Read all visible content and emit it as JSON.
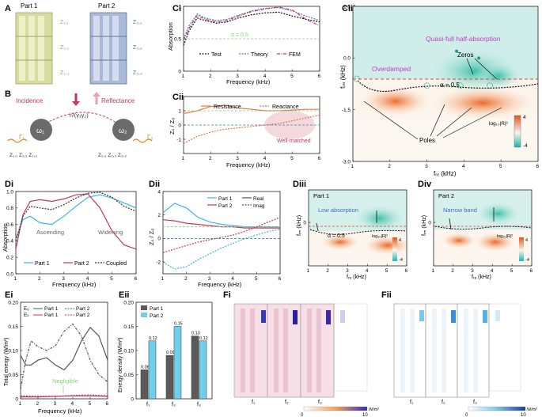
{
  "panel_labels": [
    "A",
    "B",
    "Ci",
    "Cii",
    "Ciii",
    "Di",
    "Dii",
    "Diii",
    "Div",
    "Ei",
    "Eii",
    "Fi",
    "Fii"
  ],
  "panelA": {
    "part1": "Part 1",
    "part2": "Part 2",
    "z1_labels": [
      "Z₁,₁",
      "Z₁,₂",
      "Z₁,₃"
    ],
    "z2_labels": [
      "Z₂,₁",
      "Z₂,₂",
      "Z₂,₃"
    ]
  },
  "panelB": {
    "incidence": "Incidence",
    "reflectance": "Reflectance",
    "coupling": "i√(γ₁γ₂)",
    "omega1": "ω₁",
    "omega2": "ω₂",
    "gamma1": "Γ₁",
    "gamma2": "Γ₂",
    "z_row1": "Z₁,₁  Z₁,₂  Z₁,₃",
    "z_row2": "Z₂,₁  Z₂,₂  Z₂,₃"
  },
  "colors": {
    "test": "#111111",
    "theory": "#3a7ec6",
    "fem": "#c8365a",
    "resistance": "#e07a4a",
    "reactance": "#e07a4a",
    "part1": "#39b6e6",
    "part2": "#c8365a",
    "coupled": "#333333",
    "magenta": "#c23cc4",
    "green_dash": "#8dd37a",
    "map_top": "#cfeee9",
    "map_zero": "#c6eae6",
    "map_warm": "#f6c89a",
    "map_hot": "#ec7a3a"
  },
  "chart_data": [
    {
      "id": "Ci",
      "type": "line",
      "xlabel": "Frequency (kHz)",
      "ylabel": "Absorption",
      "xlim": [
        1,
        6
      ],
      "ylim": [
        0,
        1
      ],
      "xticks": [
        1,
        2,
        3,
        4,
        5,
        6
      ],
      "yticks": [
        0,
        0.5,
        1
      ],
      "annotation": "α = 0.5",
      "series": [
        {
          "name": "Test",
          "x": [
            1,
            1.2,
            1.5,
            1.8,
            2.2,
            2.6,
            3,
            3.5,
            4,
            4.5,
            5,
            5.5,
            6
          ],
          "y": [
            0.4,
            0.62,
            0.82,
            0.78,
            0.74,
            0.76,
            0.82,
            0.87,
            0.9,
            0.91,
            0.85,
            0.8,
            0.76
          ]
        },
        {
          "name": "Theory",
          "x": [
            1,
            1.2,
            1.5,
            1.8,
            2.2,
            2.6,
            3,
            3.5,
            4,
            4.5,
            5,
            5.5,
            6
          ],
          "y": [
            0.5,
            0.7,
            0.88,
            0.82,
            0.78,
            0.8,
            0.86,
            0.93,
            0.97,
            0.98,
            0.93,
            0.85,
            0.78
          ]
        },
        {
          "name": "FEM",
          "x": [
            1,
            1.2,
            1.5,
            1.8,
            2.2,
            2.6,
            3,
            3.5,
            4,
            4.5,
            5,
            5.5,
            6
          ],
          "y": [
            0.48,
            0.66,
            0.86,
            0.8,
            0.76,
            0.78,
            0.85,
            0.92,
            0.96,
            0.99,
            0.94,
            0.8,
            0.7
          ]
        }
      ]
    },
    {
      "id": "Cii",
      "type": "line",
      "xlabel": "Frequency (kHz)",
      "ylabel": "Zₛ / Z₀",
      "xlim": [
        1,
        6
      ],
      "ylim": [
        -2,
        2
      ],
      "xticks": [
        1,
        2,
        3,
        4,
        5,
        6
      ],
      "yticks": [
        -1,
        0,
        1
      ],
      "annotation": "Well-matched",
      "series": [
        {
          "name": "Resistance",
          "x": [
            1,
            1.5,
            2,
            2.5,
            3,
            3.5,
            4,
            4.5,
            5,
            5.5,
            6
          ],
          "y": [
            0.8,
            1.0,
            1.3,
            1.4,
            1.2,
            1.1,
            1.0,
            1.0,
            1.05,
            1.1,
            1.1
          ]
        },
        {
          "name": "Reactance",
          "x": [
            1,
            1.5,
            2,
            2.5,
            3,
            3.5,
            4,
            4.5,
            5,
            5.5,
            6
          ],
          "y": [
            -1.3,
            -0.8,
            -0.5,
            -0.3,
            -0.2,
            -0.1,
            0.0,
            0.1,
            0.3,
            0.5,
            0.7
          ]
        }
      ]
    },
    {
      "id": "Ciii",
      "type": "heatmap",
      "xlabel": "fᵣₑ (kHz)",
      "ylabel": "fᵢₘ (kHz)",
      "xlim": [
        1,
        6
      ],
      "ylim": [
        -3,
        1.5
      ],
      "xticks": [
        1,
        2,
        3,
        4,
        5,
        6
      ],
      "yticks": [
        -3.0,
        -1.5,
        0.0,
        1.5
      ],
      "colorbar_label": "log₁₀|R|²",
      "colorbar_range": [
        -4,
        4
      ],
      "labels": {
        "quasi": "Quasi-full half-absorption",
        "overdamped": "Overdamped",
        "zeros": "Zeros",
        "poles": "Poles",
        "alpha": "α = 0.5"
      },
      "zeros": [
        [
          3.8,
          0.2
        ],
        [
          4.4,
          0.0
        ]
      ],
      "poles": [
        [
          1.1,
          -0.6
        ],
        [
          3.0,
          -0.8
        ],
        [
          3.9,
          -0.8
        ],
        [
          4.7,
          -0.8
        ]
      ]
    },
    {
      "id": "Di",
      "type": "line",
      "xlabel": "Frequency (kHz)",
      "ylabel": "Absorption",
      "xlim": [
        1,
        6
      ],
      "ylim": [
        0,
        1
      ],
      "xticks": [
        1,
        2,
        3,
        4,
        5,
        6
      ],
      "yticks": [
        0,
        0.2,
        0.4,
        0.6,
        0.8,
        1.0
      ],
      "annotations": [
        "Ascending",
        "Widening"
      ],
      "series": [
        {
          "name": "Part 1",
          "x": [
            1,
            1.3,
            1.6,
            2,
            2.5,
            3,
            3.5,
            4,
            4.5,
            5,
            5.5,
            6
          ],
          "y": [
            0.42,
            0.66,
            0.7,
            0.62,
            0.6,
            0.7,
            0.82,
            0.93,
            0.96,
            0.92,
            0.86,
            0.8
          ]
        },
        {
          "name": "Part 2",
          "x": [
            1,
            1.3,
            1.6,
            2,
            2.5,
            3,
            3.5,
            4,
            4.5,
            5,
            5.5,
            6
          ],
          "y": [
            0.3,
            0.72,
            0.88,
            0.9,
            0.88,
            0.91,
            0.96,
            0.97,
            0.8,
            0.52,
            0.35,
            0.3
          ]
        },
        {
          "name": "Coupled",
          "x": [
            1,
            1.3,
            1.6,
            2,
            2.5,
            3,
            3.5,
            4,
            4.5,
            5,
            5.5,
            6
          ],
          "y": [
            0.4,
            0.7,
            0.82,
            0.8,
            0.78,
            0.84,
            0.92,
            0.98,
            0.99,
            0.93,
            0.82,
            0.76
          ]
        }
      ]
    },
    {
      "id": "Dii",
      "type": "line",
      "xlabel": "Frequency (kHz)",
      "ylabel": "Zₛ / Z₀",
      "xlim": [
        1,
        6
      ],
      "ylim": [
        -3,
        4
      ],
      "xticks": [
        1,
        2,
        3,
        4,
        5,
        6
      ],
      "yticks": [
        -2,
        0,
        2,
        4
      ],
      "legend": [
        "Part 1",
        "Part 2",
        "Real",
        "Imag"
      ],
      "series": [
        {
          "name": "Part 1 Real",
          "x": [
            1,
            1.5,
            2,
            2.5,
            3,
            3.5,
            4,
            4.5,
            5,
            5.5,
            6
          ],
          "y": [
            2.2,
            3.0,
            2.6,
            1.8,
            1.4,
            1.2,
            1.1,
            1.0,
            1.0,
            1.0,
            1.0
          ]
        },
        {
          "name": "Part 2 Real",
          "x": [
            1,
            1.5,
            2,
            2.5,
            3,
            3.5,
            4,
            4.5,
            5,
            5.5,
            6
          ],
          "y": [
            1.6,
            1.5,
            1.3,
            1.2,
            1.1,
            1.0,
            1.0,
            0.9,
            0.9,
            0.9,
            0.9
          ]
        },
        {
          "name": "Part 1 Imag",
          "x": [
            1,
            1.5,
            2,
            2.5,
            3,
            3.5,
            4,
            4.5,
            5,
            5.5,
            6
          ],
          "y": [
            -2.0,
            -2.6,
            -2.4,
            -1.8,
            -1.3,
            -0.8,
            -0.4,
            0.0,
            0.3,
            0.6,
            0.8
          ]
        },
        {
          "name": "Part 2 Imag",
          "x": [
            1,
            1.5,
            2,
            2.5,
            3,
            3.5,
            4,
            4.5,
            5,
            5.5,
            6
          ],
          "y": [
            -1.2,
            -0.9,
            -0.6,
            -0.3,
            -0.1,
            0.1,
            0.3,
            0.6,
            1.0,
            1.4,
            1.8
          ]
        }
      ]
    },
    {
      "id": "Diii",
      "type": "heatmap",
      "title": "Part 1",
      "note": "Low absorption",
      "xlabel": "fᵣₑ (kHz)",
      "ylabel": "fᵢₘ (kHz)",
      "xticks": [
        1,
        2,
        3,
        4,
        5,
        6
      ],
      "yticks": [
        0
      ],
      "colorbar_label": "log₁₀|R|²",
      "colorbar_range": [
        -4,
        4
      ],
      "alpha": "α = 0.5"
    },
    {
      "id": "Div",
      "type": "heatmap",
      "title": "Part 2",
      "note": "Narrow band",
      "xlabel": "fᵣₑ (kHz)",
      "ylabel": "fᵢₘ (kHz)",
      "xticks": [
        1,
        2,
        3,
        4,
        5,
        6
      ],
      "yticks": [
        0
      ],
      "colorbar_label": "log₁₀|R|²",
      "colorbar_range": [
        -4,
        4
      ]
    },
    {
      "id": "Ei",
      "type": "line",
      "xlabel": "Frequency (kHz)",
      "ylabel": "Total energy (W/m²)",
      "xlim": [
        1,
        6
      ],
      "ylim": [
        0,
        0.2
      ],
      "xticks": [
        1,
        2,
        3,
        4,
        5,
        6
      ],
      "yticks": [
        0,
        0.05,
        0.1,
        0.15,
        0.2
      ],
      "legend": [
        "Eᵥ",
        "Eₖ"
      ],
      "annotation": "Negligible",
      "series": [
        {
          "name": "Ev Part 1",
          "x": [
            1,
            1.3,
            1.6,
            2,
            2.5,
            3,
            3.5,
            4,
            4.5,
            5,
            5.5,
            6
          ],
          "y": [
            0.09,
            0.07,
            0.07,
            0.08,
            0.085,
            0.07,
            0.06,
            0.08,
            0.12,
            0.148,
            0.13,
            0.08
          ]
        },
        {
          "name": "Ev Part 2",
          "x": [
            1,
            1.3,
            1.6,
            2,
            2.5,
            3,
            3.5,
            4,
            4.5,
            5,
            5.5,
            6
          ],
          "y": [
            0.02,
            0.08,
            0.12,
            0.108,
            0.1,
            0.11,
            0.14,
            0.155,
            0.13,
            0.08,
            0.05,
            0.035
          ]
        },
        {
          "name": "Ek Part 1",
          "x": [
            1,
            2,
            3,
            4,
            5,
            6
          ],
          "y": [
            0.004,
            0.004,
            0.005,
            0.006,
            0.006,
            0.005
          ]
        },
        {
          "name": "Ek Part 2",
          "x": [
            1,
            2,
            3,
            4,
            5,
            6
          ],
          "y": [
            0.006,
            0.005,
            0.005,
            0.007,
            0.008,
            0.006
          ]
        }
      ]
    },
    {
      "id": "Eii",
      "type": "bar",
      "ylabel": "Energy density (W/m²)",
      "ylim": [
        0,
        0.2
      ],
      "yticks": [
        0,
        0.05,
        0.1,
        0.15,
        0.2
      ],
      "categories": [
        "f₁",
        "f₂",
        "f₃"
      ],
      "series": [
        {
          "name": "Part 1",
          "values": [
            0.06,
            0.09,
            0.13
          ]
        },
        {
          "name": "Part 2",
          "values": [
            0.12,
            0.15,
            0.12
          ]
        }
      ],
      "value_labels": [
        [
          "0.06",
          "0.09",
          "0.13"
        ],
        [
          "0.12",
          "0.15",
          "0.12"
        ]
      ]
    }
  ],
  "panelF": {
    "fi_freqs": [
      "f₁",
      "f₂",
      "f₃"
    ],
    "fii_freqs": [
      "f₁",
      "f₂",
      "f₃"
    ],
    "fi_scale": [
      "0",
      "W/m²",
      "10"
    ],
    "fii_scale": [
      "0",
      "W/m²",
      "10"
    ]
  }
}
